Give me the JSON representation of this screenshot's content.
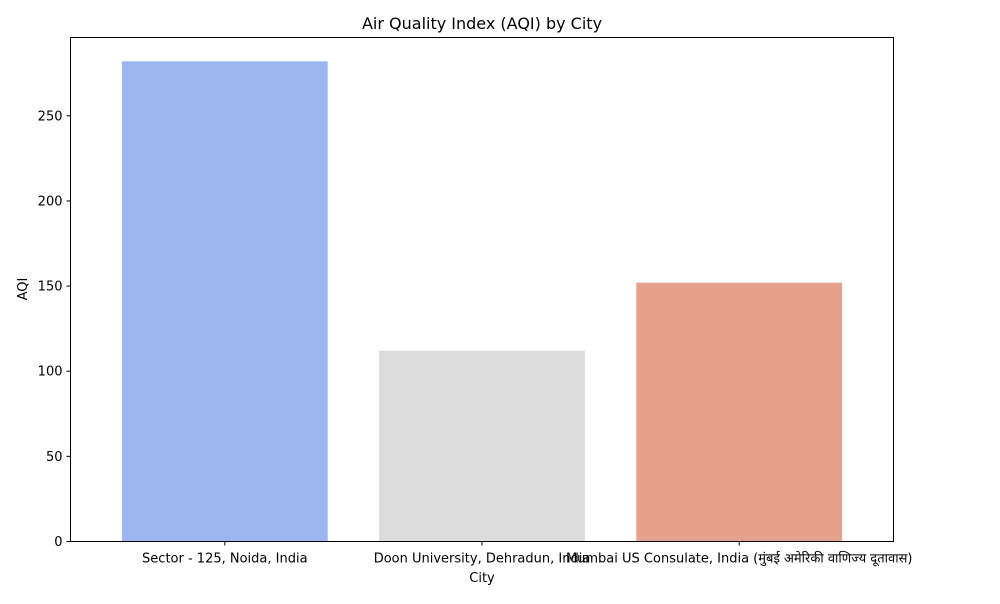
{
  "chart_data": {
    "type": "bar",
    "title": "Air Quality Index (AQI) by City",
    "xlabel": "City",
    "ylabel": "AQI",
    "categories": [
      "Sector - 125, Noida, India",
      "Doon University, Dehradun, India",
      "Mumbai US Consulate, India (मुंबई अमेरिकी वाणिज्य दूतावास)"
    ],
    "values": [
      282,
      112,
      152
    ],
    "colors": [
      "#9bb5f0",
      "#dcdcdc",
      "#e4a18b"
    ],
    "ylim": [
      0,
      296
    ],
    "yticks": [
      0,
      50,
      100,
      150,
      200,
      250
    ],
    "grid": false,
    "legend": "none"
  }
}
